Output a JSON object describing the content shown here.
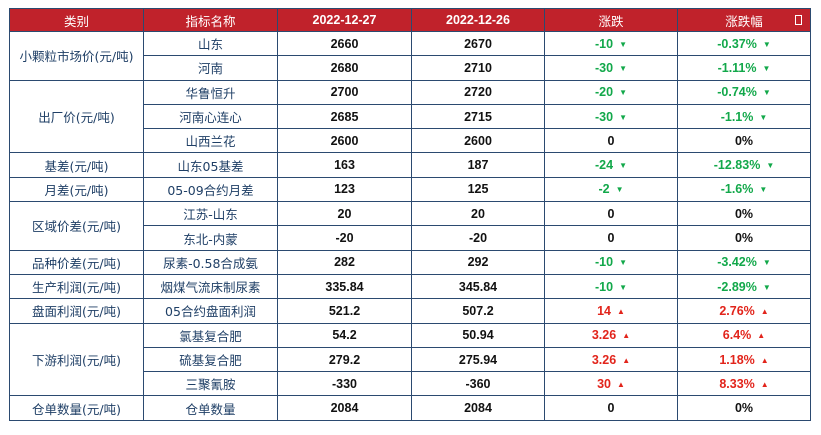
{
  "headers": [
    "类别",
    "指标名称",
    "2022-12-27",
    "2022-12-26",
    "涨跌",
    "涨跌幅"
  ],
  "rows": [
    {
      "cat": "小颗粒市场价(元/吨)",
      "span": 2,
      "ind": "山东",
      "v1": "2660",
      "v2": "2670",
      "chg": "-10",
      "pct": "-0.37%",
      "dir": "down"
    },
    {
      "ind": "河南",
      "v1": "2680",
      "v2": "2710",
      "chg": "-30",
      "pct": "-1.11%",
      "dir": "down"
    },
    {
      "cat": "出厂价(元/吨)",
      "span": 3,
      "ind": "华鲁恒升",
      "v1": "2700",
      "v2": "2720",
      "chg": "-20",
      "pct": "-0.74%",
      "dir": "down"
    },
    {
      "ind": "河南心连心",
      "v1": "2685",
      "v2": "2715",
      "chg": "-30",
      "pct": "-1.1%",
      "dir": "down"
    },
    {
      "ind": "山西兰花",
      "v1": "2600",
      "v2": "2600",
      "chg": "0",
      "pct": "0%",
      "dir": "flat"
    },
    {
      "cat": "基差(元/吨)",
      "span": 1,
      "ind": "山东05基差",
      "v1": "163",
      "v2": "187",
      "chg": "-24",
      "pct": "-12.83%",
      "dir": "down"
    },
    {
      "cat": "月差(元/吨)",
      "span": 1,
      "ind": "05-09合约月差",
      "v1": "123",
      "v2": "125",
      "chg": "-2",
      "pct": "-1.6%",
      "dir": "down"
    },
    {
      "cat": "区域价差(元/吨)",
      "span": 2,
      "ind": "江苏-山东",
      "v1": "20",
      "v2": "20",
      "chg": "0",
      "pct": "0%",
      "dir": "flat"
    },
    {
      "ind": "东北-内蒙",
      "v1": "-20",
      "v2": "-20",
      "chg": "0",
      "pct": "0%",
      "dir": "flat"
    },
    {
      "cat": "品种价差(元/吨)",
      "span": 1,
      "ind": "尿素-0.58合成氨",
      "v1": "282",
      "v2": "292",
      "chg": "-10",
      "pct": "-3.42%",
      "dir": "down"
    },
    {
      "cat": "生产利润(元/吨)",
      "span": 1,
      "ind": "烟煤气流床制尿素",
      "v1": "335.84",
      "v2": "345.84",
      "chg": "-10",
      "pct": "-2.89%",
      "dir": "down"
    },
    {
      "cat": "盘面利润(元/吨)",
      "span": 1,
      "ind": "05合约盘面利润",
      "v1": "521.2",
      "v2": "507.2",
      "chg": "14",
      "pct": "2.76%",
      "dir": "up"
    },
    {
      "cat": "下游利润(元/吨)",
      "span": 3,
      "ind": "氯基复合肥",
      "v1": "54.2",
      "v2": "50.94",
      "chg": "3.26",
      "pct": "6.4%",
      "dir": "up"
    },
    {
      "ind": "硫基复合肥",
      "v1": "279.2",
      "v2": "275.94",
      "chg": "3.26",
      "pct": "1.18%",
      "dir": "up"
    },
    {
      "ind": "三聚氰胺",
      "v1": "-330",
      "v2": "-360",
      "chg": "30",
      "pct": "8.33%",
      "dir": "up"
    },
    {
      "cat": "仓单数量(元/吨)",
      "span": 1,
      "ind": "仓单数量",
      "v1": "2084",
      "v2": "2084",
      "chg": "0",
      "pct": "0%",
      "dir": "flat"
    }
  ],
  "arrows": {
    "down": "▼",
    "up": "▲",
    "flat": ""
  }
}
